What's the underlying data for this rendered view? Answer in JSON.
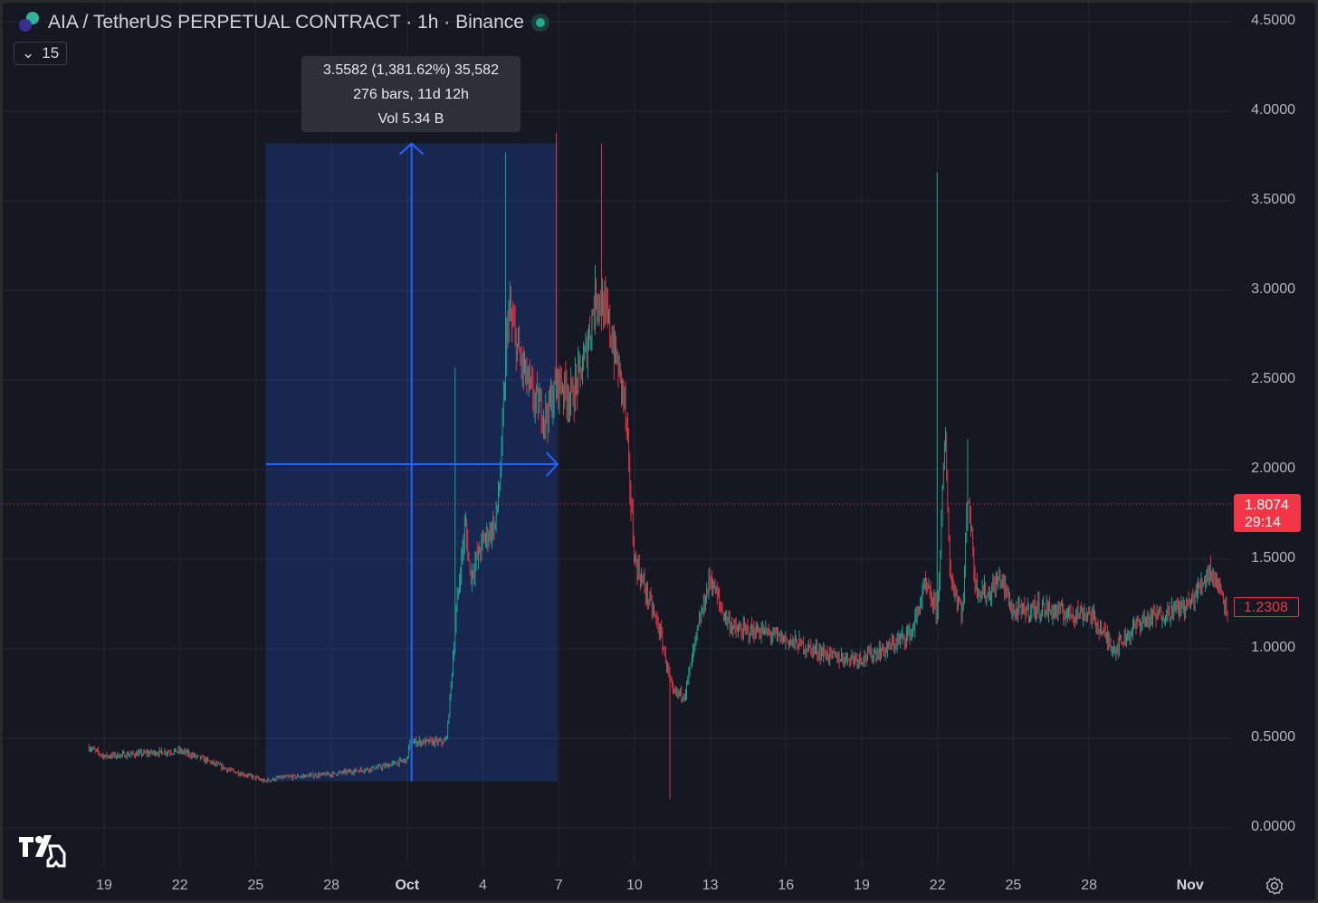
{
  "header": {
    "title": "AIA / TetherUS PERPETUAL CONTRACT · 1h · Binance",
    "indicator_count": "15",
    "status_color": "#22ab94"
  },
  "measure": {
    "line1": "3.5582 (1,381.62%) 35,582",
    "line2": "276 bars, 11d 12h",
    "line3": "Vol 5.34 B"
  },
  "price_labels": {
    "current_price": "1.8074",
    "countdown": "29:14",
    "last": "1.2308"
  },
  "colors": {
    "up": "#22ab94",
    "down": "#f23645",
    "measure": "#2962ff",
    "background": "#151823"
  },
  "chart_data": {
    "type": "candlestick",
    "ylim": [
      0,
      4.5
    ],
    "yticks": [
      "4.5000",
      "4.0000",
      "3.5000",
      "3.0000",
      "2.5000",
      "2.0000",
      "1.5000",
      "1.0000",
      "0.5000",
      "0.0000"
    ],
    "ytick_values": [
      4.5,
      4,
      3.5,
      3,
      2.5,
      2,
      1.5,
      1,
      0.5,
      0
    ],
    "xticks": [
      {
        "label": "19",
        "day": 0
      },
      {
        "label": "22",
        "day": 3
      },
      {
        "label": "25",
        "day": 6
      },
      {
        "label": "28",
        "day": 9
      },
      {
        "label": "Oct",
        "day": 12,
        "bold": true
      },
      {
        "label": "4",
        "day": 15
      },
      {
        "label": "7",
        "day": 18
      },
      {
        "label": "10",
        "day": 21
      },
      {
        "label": "13",
        "day": 24
      },
      {
        "label": "16",
        "day": 27
      },
      {
        "label": "19",
        "day": 30
      },
      {
        "label": "22",
        "day": 33
      },
      {
        "label": "25",
        "day": 36
      },
      {
        "label": "28",
        "day": 39
      },
      {
        "label": "Nov",
        "day": 43,
        "bold": true
      }
    ],
    "path_day_price": [
      [
        -0.6,
        0.45
      ],
      [
        0,
        0.4
      ],
      [
        1,
        0.41
      ],
      [
        2,
        0.42
      ],
      [
        3,
        0.43
      ],
      [
        4,
        0.38
      ],
      [
        5,
        0.32
      ],
      [
        6,
        0.28
      ],
      [
        6.3,
        0.26
      ],
      [
        7,
        0.28
      ],
      [
        9,
        0.3
      ],
      [
        11,
        0.34
      ],
      [
        12,
        0.38
      ],
      [
        12.1,
        0.48
      ],
      [
        13.5,
        0.48
      ],
      [
        13.6,
        0.55
      ],
      [
        14,
        1.3
      ],
      [
        14.3,
        1.7
      ],
      [
        14.5,
        1.4
      ],
      [
        15,
        1.6
      ],
      [
        15.5,
        1.7
      ],
      [
        15.7,
        2.0
      ],
      [
        16,
        2.9
      ],
      [
        16.5,
        2.6
      ],
      [
        17,
        2.4
      ],
      [
        17.5,
        2.3
      ],
      [
        18,
        2.5
      ],
      [
        18.5,
        2.4
      ],
      [
        19,
        2.6
      ],
      [
        19.5,
        3.0
      ],
      [
        20,
        2.8
      ],
      [
        20.6,
        2.4
      ],
      [
        21,
        1.5
      ],
      [
        21.5,
        1.3
      ],
      [
        22,
        1.1
      ],
      [
        22.3,
        0.9
      ],
      [
        22.5,
        0.75
      ],
      [
        23,
        0.75
      ],
      [
        23.5,
        1.1
      ],
      [
        24,
        1.4
      ],
      [
        24.5,
        1.2
      ],
      [
        25,
        1.1
      ],
      [
        26,
        1.1
      ],
      [
        27,
        1.05
      ],
      [
        28,
        1.0
      ],
      [
        29,
        0.95
      ],
      [
        30,
        0.95
      ],
      [
        31,
        1.0
      ],
      [
        32,
        1.1
      ],
      [
        32.5,
        1.35
      ],
      [
        33,
        1.2
      ],
      [
        33.3,
        2.2
      ],
      [
        33.5,
        1.4
      ],
      [
        34,
        1.2
      ],
      [
        34.2,
        1.9
      ],
      [
        34.5,
        1.35
      ],
      [
        35,
        1.3
      ],
      [
        35.5,
        1.4
      ],
      [
        36,
        1.2
      ],
      [
        37,
        1.23
      ],
      [
        38,
        1.2
      ],
      [
        39,
        1.2
      ],
      [
        40,
        1.0
      ],
      [
        41,
        1.15
      ],
      [
        42,
        1.2
      ],
      [
        43,
        1.25
      ],
      [
        43.8,
        1.45
      ],
      [
        44.5,
        1.23
      ]
    ],
    "spikes_day_price": [
      [
        13.9,
        2.57
      ],
      [
        15.9,
        3.77
      ],
      [
        17.9,
        3.88
      ],
      [
        19.7,
        3.82
      ],
      [
        22.4,
        0.16
      ],
      [
        33.0,
        3.66
      ],
      [
        34.2,
        2.17
      ]
    ],
    "measure_range": {
      "from_day": 6.4,
      "to_day": 17.95,
      "low": 0.26,
      "high": 3.82
    },
    "current_price": 1.8074,
    "last_price": 1.2308
  }
}
